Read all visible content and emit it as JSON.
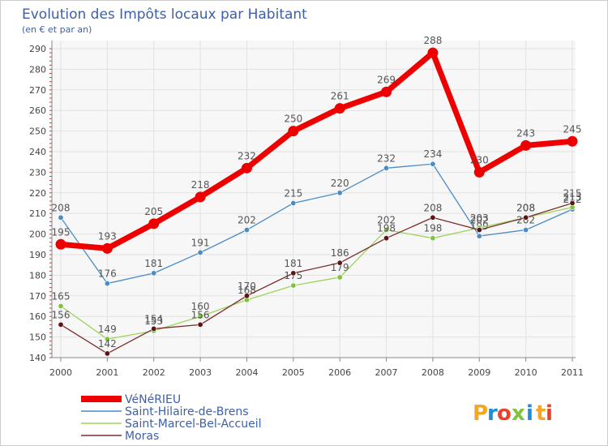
{
  "header": {
    "title": "Evolution des Impôts locaux par Habitant",
    "subtitle": "(en € et par an)"
  },
  "brand": {
    "letters": [
      "P",
      "r",
      "o",
      "x",
      "i",
      "t",
      "i"
    ],
    "colors": [
      "#f5a623",
      "#1a8fd8",
      "#e8412c",
      "#7fc241",
      "#1a8fd8",
      "#f5a623",
      "#e8412c"
    ]
  },
  "chart_data": {
    "type": "line",
    "title": "Evolution des Impôts locaux par Habitant",
    "subtitle": "(en € et par an)",
    "xlabel": "",
    "ylabel": "",
    "x": [
      "2000",
      "2001",
      "2002",
      "2003",
      "2004",
      "2005",
      "2006",
      "2007",
      "2008",
      "2009",
      "2010",
      "2011"
    ],
    "ylim": [
      140,
      290
    ],
    "yticks": [
      140,
      150,
      160,
      170,
      180,
      190,
      200,
      210,
      220,
      230,
      240,
      250,
      260,
      270,
      280,
      290
    ],
    "grid": true,
    "legend_position": "bottom-left",
    "series": [
      {
        "name": "Saint-Hilaire-de-Brens",
        "color": "#4a8cc4",
        "marker": "#4a8cc4",
        "values": [
          208,
          176,
          181,
          191,
          202,
          215,
          220,
          232,
          234,
          199,
          202,
          212
        ],
        "labels": [
          "208",
          "176",
          "181",
          "191",
          "202",
          "215",
          "220",
          "232",
          "234",
          "199",
          "202",
          "212"
        ]
      },
      {
        "name": "Saint-Marcel-Bel-Accueil",
        "color": "#9dd35a",
        "marker": "#7cc43c",
        "values": [
          165,
          149,
          153,
          160,
          168,
          175,
          179,
          202,
          198,
          203,
          208,
          213
        ],
        "labels": [
          "165",
          "149",
          "153",
          "160",
          "168",
          "175",
          "179",
          "202",
          "198",
          "203",
          "208",
          "213"
        ]
      },
      {
        "name": "Moras",
        "color": "#7a2c2c",
        "marker": "#5c1414",
        "values": [
          156,
          142,
          154,
          156,
          170,
          181,
          186,
          198,
          208,
          202,
          208,
          215
        ],
        "labels": [
          "156",
          "142",
          "154",
          "156",
          "170",
          "181",
          "186",
          "198",
          "208",
          "202",
          "208",
          "215"
        ]
      },
      {
        "name": "VéNéRIEU",
        "color": "#ee0000",
        "marker": "#ee0000",
        "values": [
          195,
          193,
          205,
          218,
          232,
          250,
          261,
          269,
          288,
          230,
          243,
          245
        ],
        "labels": [
          "195",
          "193",
          "205",
          "218",
          "232",
          "250",
          "261",
          "269",
          "288",
          "230",
          "243",
          "245"
        ]
      }
    ]
  }
}
